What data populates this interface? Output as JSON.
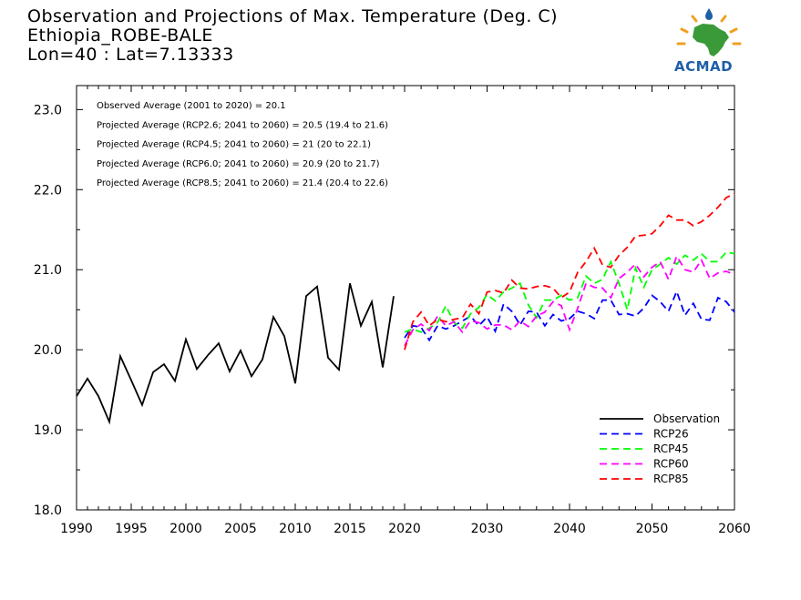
{
  "header": {
    "title": "Observation and Projections of Max. Temperature (Deg. C)",
    "station": "Ethiopia_ROBE-BALE",
    "coords": "Lon=40 : Lat=7.13333",
    "logo_text": "ACMAD"
  },
  "colors": {
    "Observation": "#000000",
    "RCP26": "#0000ff",
    "RCP45": "#00ff00",
    "RCP60": "#ff00ff",
    "RCP85": "#ff0000"
  },
  "chart_data": {
    "type": "line",
    "title": "Observation and Projections of Max. Temperature (Deg. C)",
    "xlabel": "",
    "ylabel": "",
    "xlim": [
      1990,
      2060
    ],
    "ylim": [
      18.0,
      23.3
    ],
    "x_ticks_left": [
      1990,
      1995,
      2000,
      2005,
      2010,
      2015,
      2020
    ],
    "x_ticks_right": [
      2020,
      2030,
      2040,
      2050,
      2060
    ],
    "x_break": 2020,
    "y_ticks": [
      "18.0",
      "19.0",
      "20.0",
      "21.0",
      "22.0",
      "23.0"
    ],
    "legend_position": "bottom-right",
    "annotations": [
      "Observed Average (2001 to 2020) = 20.1",
      "Projected Average (RCP2.6; 2041 to 2060) = 20.5 (19.4 to 21.6)",
      "Projected Average (RCP4.5; 2041 to 2060) = 21 (20 to 22.1)",
      "Projected Average (RCP6.0; 2041 to 2060) = 20.9 (20 to 21.7)",
      "Projected Average (RCP8.5; 2041 to 2060) = 21.4 (20.4 to 22.6)"
    ],
    "series": [
      {
        "name": "Observation",
        "style": "solid",
        "x": [
          1990,
          1991,
          1992,
          1993,
          1994,
          1995,
          1996,
          1997,
          1998,
          1999,
          2000,
          2001,
          2002,
          2003,
          2004,
          2005,
          2006,
          2007,
          2008,
          2009,
          2010,
          2011,
          2012,
          2013,
          2014,
          2015,
          2016,
          2017,
          2018,
          2019
        ],
        "values": [
          19.42,
          19.64,
          19.42,
          19.1,
          19.92,
          19.62,
          19.31,
          19.72,
          19.82,
          19.61,
          20.13,
          19.76,
          19.93,
          20.08,
          19.73,
          19.99,
          19.67,
          19.88,
          20.41,
          20.17,
          19.58,
          20.67,
          20.79,
          19.9,
          19.75,
          20.83,
          20.3,
          20.6,
          19.78,
          20.67
        ]
      },
      {
        "name": "RCP26",
        "style": "dashed",
        "x": [
          2020,
          2021,
          2022,
          2023,
          2024,
          2025,
          2026,
          2027,
          2028,
          2029,
          2030,
          2031,
          2032,
          2033,
          2034,
          2035,
          2036,
          2037,
          2038,
          2039,
          2040,
          2041,
          2042,
          2043,
          2044,
          2045,
          2046,
          2047,
          2048,
          2049,
          2050,
          2051,
          2052,
          2053,
          2054,
          2055,
          2056,
          2057,
          2058,
          2059,
          2060
        ],
        "values": [
          20.15,
          20.3,
          20.28,
          20.12,
          20.3,
          20.26,
          20.3,
          20.36,
          20.42,
          20.3,
          20.41,
          20.23,
          20.57,
          20.48,
          20.31,
          20.48,
          20.47,
          20.3,
          20.44,
          20.36,
          20.39,
          20.48,
          20.45,
          20.39,
          20.62,
          20.62,
          20.44,
          20.45,
          20.42,
          20.52,
          20.68,
          20.6,
          20.48,
          20.73,
          20.43,
          20.58,
          20.38,
          20.37,
          20.65,
          20.6,
          20.47
        ]
      },
      {
        "name": "RCP45",
        "style": "dashed",
        "x": [
          2020,
          2021,
          2022,
          2023,
          2024,
          2025,
          2026,
          2027,
          2028,
          2029,
          2030,
          2031,
          2032,
          2033,
          2034,
          2035,
          2036,
          2037,
          2038,
          2039,
          2040,
          2041,
          2042,
          2043,
          2044,
          2045,
          2046,
          2047,
          2048,
          2049,
          2050,
          2051,
          2052,
          2053,
          2054,
          2055,
          2056,
          2057,
          2058,
          2059,
          2060
        ],
        "values": [
          20.22,
          20.26,
          20.22,
          20.27,
          20.34,
          20.55,
          20.34,
          20.27,
          20.45,
          20.53,
          20.69,
          20.61,
          20.72,
          20.77,
          20.83,
          20.56,
          20.4,
          20.62,
          20.62,
          20.68,
          20.62,
          20.65,
          20.92,
          20.83,
          20.88,
          21.1,
          20.83,
          20.5,
          21.02,
          20.78,
          21.0,
          21.07,
          21.15,
          21.07,
          21.18,
          21.12,
          21.2,
          21.1,
          21.1,
          21.22,
          21.2
        ]
      },
      {
        "name": "RCP60",
        "style": "dashed",
        "x": [
          2020,
          2021,
          2022,
          2023,
          2024,
          2025,
          2026,
          2027,
          2028,
          2029,
          2030,
          2031,
          2032,
          2033,
          2034,
          2035,
          2036,
          2037,
          2038,
          2039,
          2040,
          2041,
          2042,
          2043,
          2044,
          2045,
          2046,
          2047,
          2048,
          2049,
          2050,
          2051,
          2052,
          2053,
          2054,
          2055,
          2056,
          2057,
          2058,
          2059,
          2060
        ],
        "values": [
          20.05,
          20.25,
          20.32,
          20.24,
          20.42,
          20.3,
          20.35,
          20.22,
          20.36,
          20.34,
          20.26,
          20.31,
          20.31,
          20.25,
          20.36,
          20.29,
          20.42,
          20.47,
          20.6,
          20.55,
          20.25,
          20.52,
          20.83,
          20.78,
          20.77,
          20.65,
          20.89,
          20.97,
          21.07,
          20.91,
          21.03,
          21.1,
          20.88,
          21.17,
          21.0,
          20.97,
          21.12,
          20.89,
          20.96,
          20.98,
          20.94
        ]
      },
      {
        "name": "RCP85",
        "style": "dashed",
        "x": [
          2020,
          2021,
          2022,
          2023,
          2024,
          2025,
          2026,
          2027,
          2028,
          2029,
          2030,
          2031,
          2032,
          2033,
          2034,
          2035,
          2036,
          2037,
          2038,
          2039,
          2040,
          2041,
          2042,
          2043,
          2044,
          2045,
          2046,
          2047,
          2048,
          2049,
          2050,
          2051,
          2052,
          2053,
          2054,
          2055,
          2056,
          2057,
          2058,
          2059,
          2060
        ],
        "values": [
          20.0,
          20.35,
          20.47,
          20.3,
          20.38,
          20.35,
          20.38,
          20.4,
          20.57,
          20.45,
          20.72,
          20.74,
          20.71,
          20.87,
          20.77,
          20.76,
          20.79,
          20.8,
          20.77,
          20.65,
          20.72,
          20.97,
          21.1,
          21.27,
          21.06,
          21.03,
          21.18,
          21.28,
          21.42,
          21.43,
          21.45,
          21.55,
          21.68,
          21.62,
          21.62,
          21.55,
          21.6,
          21.68,
          21.78,
          21.9,
          21.95
        ]
      }
    ]
  }
}
